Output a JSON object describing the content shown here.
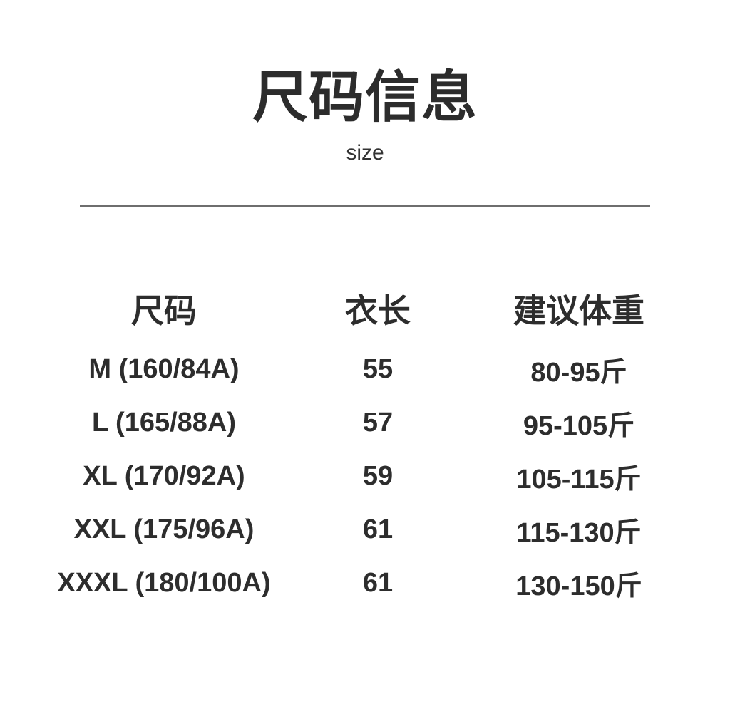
{
  "page": {
    "background_color": "#ffffff",
    "text_color": "#2d2d2d",
    "divider_color": "#6e6e6e"
  },
  "header": {
    "title": "尺码信息",
    "subtitle": "size"
  },
  "table": {
    "columns": [
      "尺码",
      "衣长",
      "建议体重"
    ],
    "rows": [
      {
        "size": "M (160/84A)",
        "length": "55",
        "weight": "80-95斤"
      },
      {
        "size": "L (165/88A)",
        "length": "57",
        "weight": "95-105斤"
      },
      {
        "size": "XL (170/92A)",
        "length": "59",
        "weight": "105-115斤"
      },
      {
        "size": "XXL (175/96A)",
        "length": "61",
        "weight": "115-130斤"
      },
      {
        "size": "XXXL (180/100A)",
        "length": "61",
        "weight": "130-150斤"
      }
    ]
  }
}
